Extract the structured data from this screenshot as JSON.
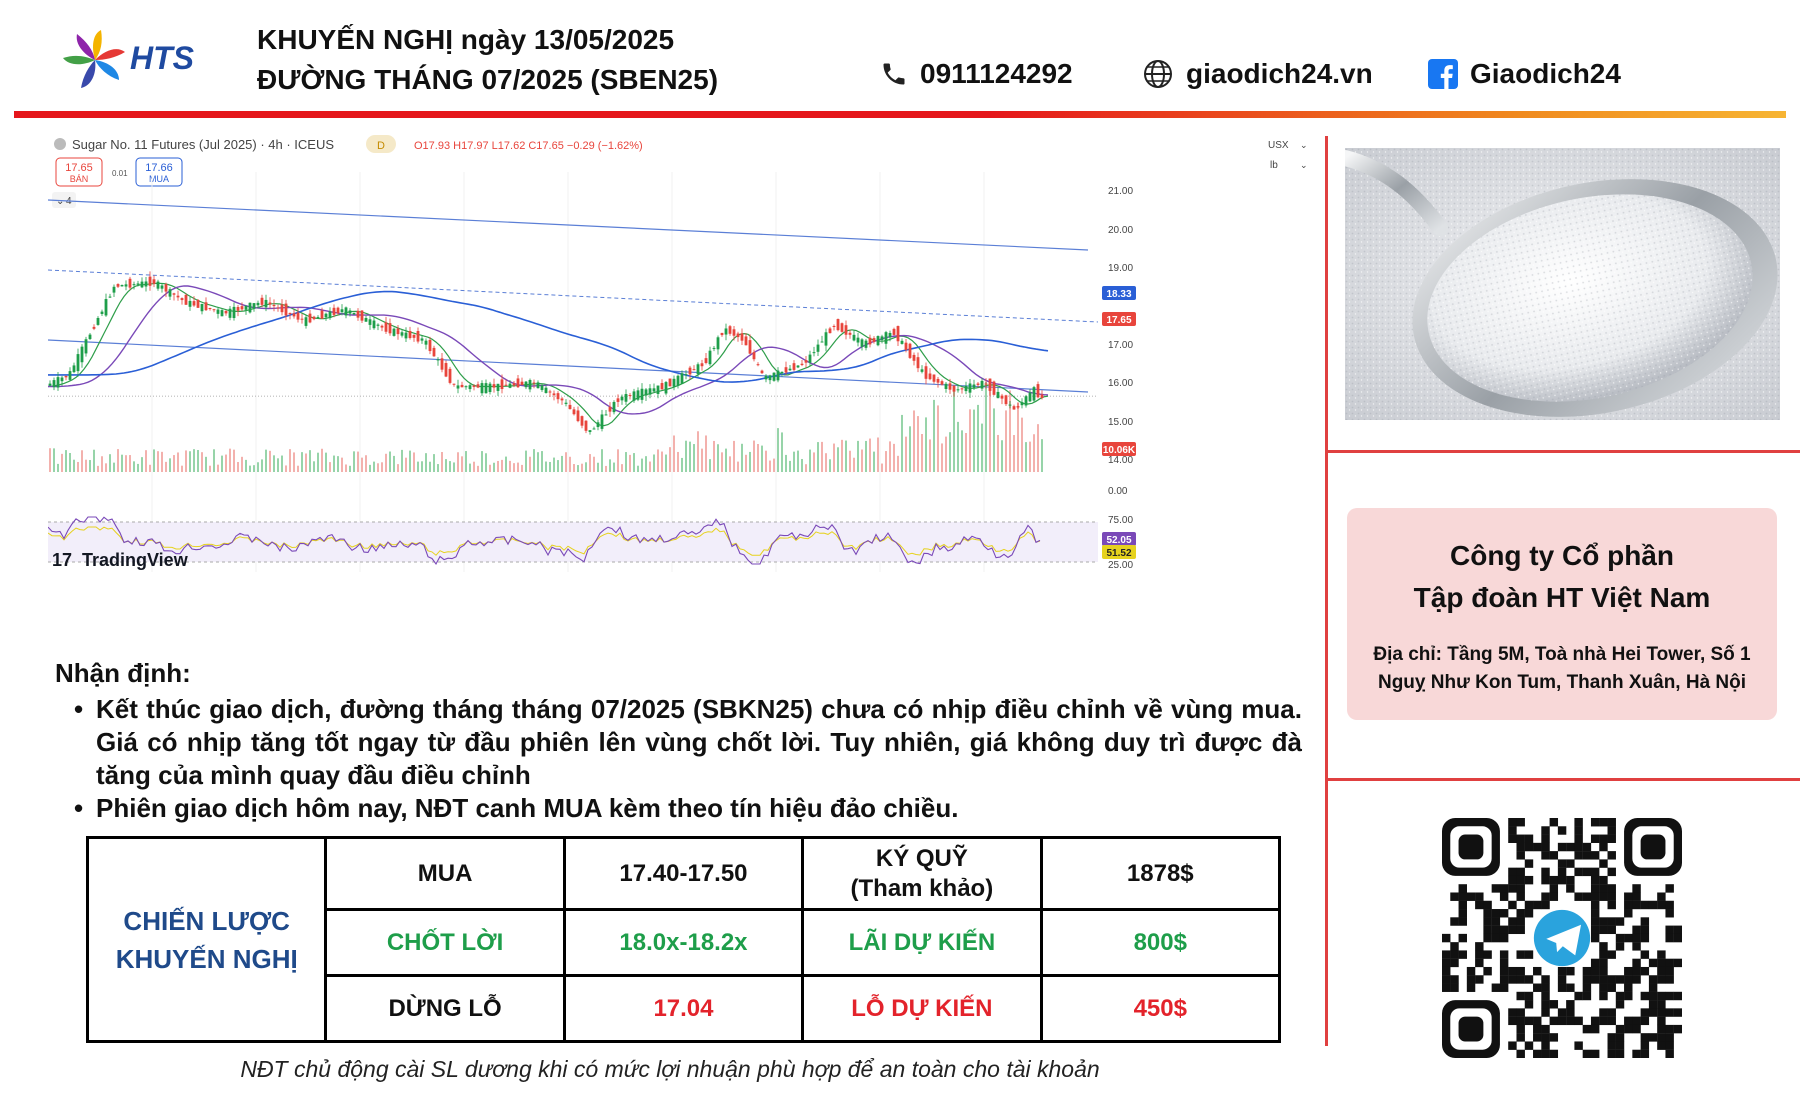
{
  "header": {
    "brand": "HTS",
    "title_line1": "KHUYẾN NGHỊ ngày 13/05/2025",
    "title_line2": "ĐƯỜNG THÁNG 07/2025 (SBEN25)",
    "phone": "0911124292",
    "website": "giaodich24.vn",
    "facebook": "Giaodich24",
    "icons": [
      "phone-icon",
      "globe-icon",
      "facebook-icon"
    ]
  },
  "chart": {
    "symbol_text": "Sugar No. 11 Futures (Jul 2025) · 4h · ICEUS",
    "badge": "D",
    "ohlc": "O17.93 H17.97 L17.62 C17.65 −0.29 (−1.62%)",
    "sell_price": "17.65",
    "sell_label": "BÁN",
    "spread": "0.01",
    "buy_price": "17.66",
    "buy_label": "MUA",
    "indicator_count": "4",
    "currency": "USX",
    "unit": "lb",
    "watermark": "TradingView",
    "price_ticks": [
      "21.00",
      "20.00",
      "19.00",
      "17.00",
      "16.00",
      "15.00",
      "14.00",
      "0.00"
    ],
    "rsi_ticks": [
      "75.00",
      "25.00"
    ],
    "price_labels": [
      {
        "text": "18.33",
        "color": "#2a5fd6"
      },
      {
        "text": "17.65",
        "color": "#e8453c"
      }
    ],
    "volume_label": "10.06K",
    "rsi_labels": [
      {
        "text": "52.05",
        "color": "#7a49b8"
      },
      {
        "text": "51.52",
        "color": "#e6d21e"
      }
    ]
  },
  "analysis": {
    "title": "Nhận định:",
    "bullets": [
      "Kết thúc giao dịch, đường tháng tháng 07/2025 (SBKN25) chưa có nhịp điều chỉnh về vùng mua. Giá có nhịp tăng tốt ngay từ đầu phiên lên vùng chốt lời. Tuy nhiên, giá không duy trì được đà tăng của mình quay đầu điều chỉnh",
      "Phiên giao dịch hôm nay, NĐT canh MUA kèm theo tín hiệu đảo chiều."
    ]
  },
  "strategy": {
    "label_line1": "CHIẾN LƯỢC",
    "label_line2": "KHUYẾN NGHỊ",
    "buy_label": "MUA",
    "buy_range": "17.40-17.50",
    "margin_label_line1": "KÝ QUỸ",
    "margin_label_line2": "(Tham khảo)",
    "margin_value": "1878$",
    "tp_label": "CHỐT LỜI",
    "tp_range": "18.0x-18.2x",
    "profit_label": "LÃI DỰ KIẾN",
    "profit_value": "800$",
    "sl_label": "DỪNG LỖ",
    "sl_value": "17.04",
    "loss_label": "LỖ DỰ KIẾN",
    "loss_value": "450$"
  },
  "footnote": "NĐT chủ động cài SL dương khi có mức lợi nhuận phù hợp để an toàn cho tài khoản",
  "company": {
    "name_line1": "Công ty Cổ phần",
    "name_line2": "Tập đoàn HT Việt Nam",
    "address": "Địa chỉ: Tầng 5M, Toà nhà Hei Tower, Số 1 Nguỵ Như Kon Tum, Thanh Xuân, Hà Nội"
  },
  "colors": {
    "accent_red": "#e5161b",
    "accent_orange": "#f7b533",
    "strategy_blue": "#1f4a8a",
    "profit_green": "#1e9e4a",
    "loss_red": "#e3232b",
    "company_bg": "#f8d8d8"
  }
}
